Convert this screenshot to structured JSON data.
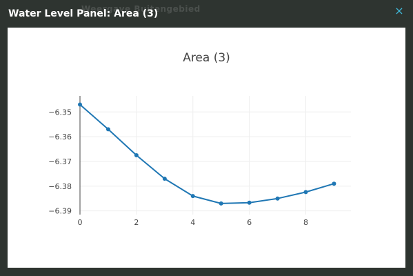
{
  "background_caption": "Weergave Buitengebied",
  "panel": {
    "title": "Water Level Panel: Area (3)",
    "close_label": "×"
  },
  "colors": {
    "accent": "#3fb8d9",
    "series": "#1f77b4"
  },
  "chart_data": {
    "type": "line",
    "title": "Area (3)",
    "xlabel": "",
    "ylabel": "",
    "x": [
      0,
      1,
      2,
      3,
      4,
      5,
      6,
      7,
      8,
      9
    ],
    "values": [
      -6.347,
      -6.357,
      -6.3675,
      -6.377,
      -6.384,
      -6.387,
      -6.3867,
      -6.385,
      -6.3824,
      -6.379
    ],
    "xlim": [
      0,
      9.6
    ],
    "ylim": [
      -6.3915,
      -6.3435
    ],
    "xticks": [
      0,
      2,
      4,
      6,
      8
    ],
    "xtick_labels": [
      "0",
      "2",
      "4",
      "6",
      "8"
    ],
    "yticks": [
      -6.35,
      -6.36,
      -6.37,
      -6.38,
      -6.39
    ],
    "ytick_labels": [
      "−6.35",
      "−6.36",
      "−6.37",
      "−6.38",
      "−6.39"
    ],
    "grid": true,
    "markers": true
  }
}
